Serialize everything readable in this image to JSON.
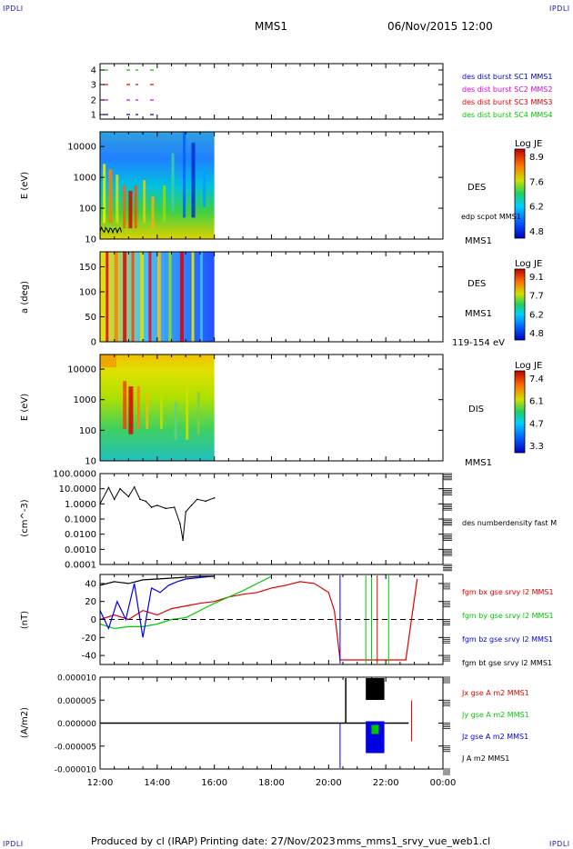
{
  "header": {
    "corner_left": "IPDLI",
    "corner_right": "IPDLI",
    "spacecraft": "MMS1",
    "datetime": "06/Nov/2015 12:00"
  },
  "footer": {
    "produced_by": "Produced by cl (IRAP)",
    "printing_date": "Printing date: 27/Nov/2023",
    "product": "mms_mms1_srvy_vue_web1.cl",
    "corner_left": "IPDLI",
    "corner_right": "IPDLI"
  },
  "colors": {
    "c1": "#0000c8",
    "c2": "#d400d4",
    "c3": "#e00000",
    "c4": "#00c800",
    "bx": "#e00000",
    "by": "#00c800",
    "bz": "#0000e0",
    "bt": "#000000"
  },
  "time_axis": {
    "range": [
      "12:00",
      "00:00"
    ],
    "tick_labels": [
      "12:00",
      "14:00",
      "16:00",
      "18:00",
      "20:00",
      "22:00",
      "00:00"
    ]
  },
  "chart_data": [
    {
      "type": "scatter",
      "id": "coverage",
      "ytick_labels": [
        "4",
        "3",
        "2",
        "1"
      ],
      "legend": [
        {
          "text": "des dist burst SC1 MMS1",
          "color": "#0000c8"
        },
        {
          "text": "des dist burst SC2 MMS2",
          "color": "#d400d4"
        },
        {
          "text": "des dist burst SC3 MMS3",
          "color": "#e00000"
        },
        {
          "text": "des dist burst SC4 MMS4",
          "color": "#00c800"
        }
      ]
    },
    {
      "type": "heatmap",
      "id": "des-energy",
      "ylabel": "E (eV)",
      "ytick_labels": [
        "10000",
        "1000",
        "100",
        "10"
      ],
      "yscale": "log",
      "ylim": [
        10,
        30000
      ],
      "data_time_range": [
        "12:00",
        "16:00"
      ],
      "instrument": "DES",
      "extra_label": "edp scpot MMS1",
      "bottom_label": "MMS1",
      "colorbar": {
        "title": "Log JE",
        "ticks": [
          "8.9",
          "7.6",
          "6.2",
          "4.8"
        ],
        "min": 4.8,
        "max": 8.9
      }
    },
    {
      "type": "heatmap",
      "id": "des-pitch",
      "ylabel": "a (deg)",
      "ytick_labels": [
        "150",
        "100",
        "50",
        "0"
      ],
      "ylim": [
        0,
        180
      ],
      "data_time_range": [
        "12:00",
        "16:00"
      ],
      "instrument": "DES",
      "extra_label": "MMS1",
      "bottom_label": "119-154 eV",
      "colorbar": {
        "title": "Log JE",
        "ticks": [
          "9.1",
          "7.7",
          "6.2",
          "4.8"
        ],
        "min": 4.8,
        "max": 9.1
      }
    },
    {
      "type": "heatmap",
      "id": "dis-energy",
      "ylabel": "E (eV)",
      "ytick_labels": [
        "10000",
        "1000",
        "100",
        "10"
      ],
      "yscale": "log",
      "ylim": [
        10,
        30000
      ],
      "data_time_range": [
        "12:00",
        "16:00"
      ],
      "instrument": "DIS",
      "bottom_label": "MMS1",
      "colorbar": {
        "title": "Log JE",
        "ticks": [
          "7.4",
          "6.1",
          "4.7",
          "3.3"
        ],
        "min": 3.3,
        "max": 7.4
      }
    },
    {
      "type": "line",
      "id": "density",
      "ylabel": "(cm^-3)",
      "yscale": "log",
      "ylim": [
        0.0001,
        100
      ],
      "ytick_labels": [
        "100.0000",
        "10.0000",
        "1.0000",
        "0.1000",
        "0.0100",
        "0.0010",
        "0.0001"
      ],
      "series_label": "des numberdensity fast M",
      "x_hours": [
        12.0,
        12.3,
        12.5,
        12.7,
        13.0,
        13.2,
        13.4,
        13.6,
        13.8,
        14.0,
        14.3,
        14.6,
        14.8,
        14.9,
        15.0,
        15.2,
        15.4,
        15.7,
        16.0
      ],
      "values": [
        1.0,
        12,
        2,
        10,
        3,
        13,
        2,
        1.5,
        0.6,
        0.8,
        0.5,
        0.6,
        0.05,
        0.004,
        0.3,
        0.8,
        2.0,
        1.5,
        2.5
      ]
    },
    {
      "type": "line",
      "id": "bfield",
      "ylabel": "(nT)",
      "ylim": [
        -50,
        50
      ],
      "ytick_labels": [
        "40",
        "20",
        "0",
        "-20",
        "-40"
      ],
      "series": [
        {
          "name": "fgm bx gse srvy l2 MMS1",
          "color": "#e00000",
          "x_hours": [
            12.0,
            12.5,
            13.0,
            13.5,
            14.0,
            14.5,
            15.0,
            15.5,
            16.0,
            16.5,
            17.0,
            17.5,
            18.0,
            18.5,
            19.0,
            19.5,
            20.0,
            20.2,
            20.4,
            22.7,
            22.9,
            23.1
          ],
          "values": [
            0,
            5,
            0,
            10,
            5,
            12,
            15,
            18,
            20,
            25,
            28,
            30,
            35,
            38,
            42,
            40,
            30,
            10,
            -45,
            -45,
            0,
            45
          ]
        },
        {
          "name": "fgm by gse srvy l2 MMS1",
          "color": "#00c800",
          "x_hours": [
            12.0,
            12.5,
            13.0,
            13.5,
            14.0,
            14.5,
            15.0,
            15.5,
            16.0,
            16.5,
            17.0,
            17.5,
            18.0
          ],
          "values": [
            -5,
            -10,
            -8,
            -8,
            -5,
            0,
            2,
            10,
            18,
            25,
            32,
            40,
            48
          ]
        },
        {
          "name": "fgm bz gse srvy l2 MMS1",
          "color": "#0000e0",
          "x_hours": [
            12.0,
            12.3,
            12.6,
            12.9,
            13.2,
            13.5,
            13.8,
            14.1,
            14.4,
            14.7,
            15.0,
            15.3,
            15.6,
            15.9,
            16.0
          ],
          "values": [
            10,
            -10,
            20,
            0,
            40,
            -20,
            35,
            30,
            38,
            42,
            45,
            46,
            47,
            48,
            48
          ]
        },
        {
          "name": "fgm bt gse srvy l2 MMS1",
          "color": "#000000",
          "x_hours": [
            12.0,
            12.5,
            13.0,
            13.5,
            14.0,
            14.5,
            15.0,
            15.5,
            16.0
          ],
          "values": [
            38,
            42,
            40,
            44,
            45,
            46,
            47,
            48,
            48
          ]
        }
      ]
    },
    {
      "type": "line",
      "id": "current",
      "ylabel": "(A/m2)",
      "ylim": [
        -1e-05,
        1e-05
      ],
      "ytick_labels": [
        "0.000010",
        "0.000005",
        "0.000000",
        "-0.000005",
        "-0.000010"
      ],
      "series": [
        {
          "name": "Jx gse A m2 MMS1",
          "color": "#e00000"
        },
        {
          "name": "Jy gse A m2 MMS1",
          "color": "#00c800"
        },
        {
          "name": "Jz gse A m2 MMS1",
          "color": "#0000e0"
        },
        {
          "name": "J A m2 MMS1",
          "color": "#000000"
        }
      ]
    }
  ]
}
